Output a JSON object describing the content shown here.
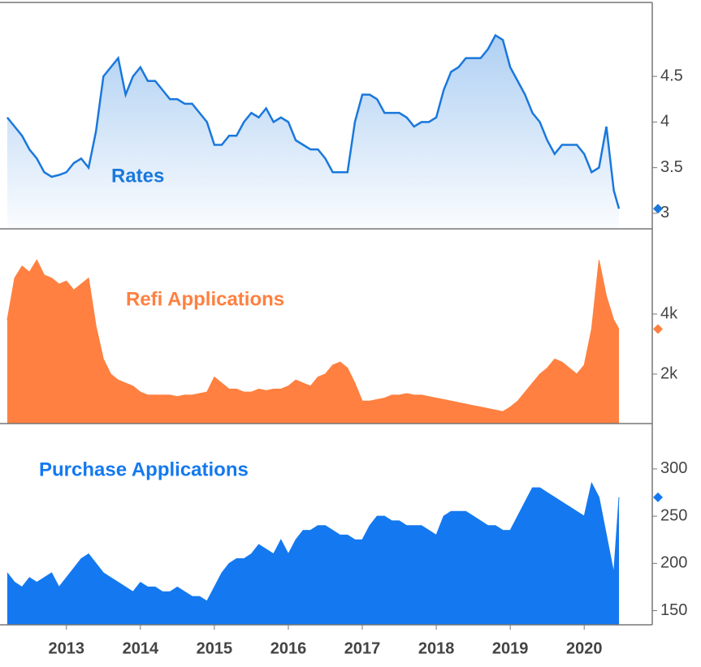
{
  "chart_data": [
    {
      "type": "line",
      "title": "Rates",
      "color": "#1a78dc",
      "fill": "#1a78dc",
      "xlim": [
        2012.19,
        2020.92
      ],
      "ylim": [
        2.83,
        5.31
      ],
      "yticks": [
        3,
        3.5,
        4,
        4.5
      ],
      "x": [
        2012.2,
        2012.3,
        2012.4,
        2012.5,
        2012.6,
        2012.7,
        2012.8,
        2012.9,
        2013.0,
        2013.1,
        2013.2,
        2013.3,
        2013.4,
        2013.5,
        2013.6,
        2013.7,
        2013.8,
        2013.9,
        2014.0,
        2014.1,
        2014.2,
        2014.3,
        2014.4,
        2014.5,
        2014.6,
        2014.7,
        2014.8,
        2014.9,
        2015.0,
        2015.1,
        2015.2,
        2015.3,
        2015.4,
        2015.5,
        2015.6,
        2015.7,
        2015.8,
        2015.9,
        2016.0,
        2016.1,
        2016.2,
        2016.3,
        2016.4,
        2016.5,
        2016.6,
        2016.7,
        2016.8,
        2016.9,
        2017.0,
        2017.1,
        2017.2,
        2017.3,
        2017.4,
        2017.5,
        2017.6,
        2017.7,
        2017.8,
        2017.9,
        2018.0,
        2018.1,
        2018.2,
        2018.3,
        2018.4,
        2018.5,
        2018.6,
        2018.7,
        2018.8,
        2018.9,
        2019.0,
        2019.1,
        2019.2,
        2019.3,
        2019.4,
        2019.5,
        2019.6,
        2019.7,
        2019.8,
        2019.9,
        2020.0,
        2020.1,
        2020.2,
        2020.3,
        2020.4,
        2020.47
      ],
      "values": [
        4.05,
        3.95,
        3.85,
        3.7,
        3.6,
        3.45,
        3.4,
        3.42,
        3.45,
        3.55,
        3.6,
        3.5,
        3.9,
        4.5,
        4.6,
        4.7,
        4.3,
        4.5,
        4.6,
        4.45,
        4.45,
        4.35,
        4.25,
        4.25,
        4.2,
        4.2,
        4.1,
        4.0,
        3.75,
        3.75,
        3.85,
        3.85,
        4.0,
        4.1,
        4.05,
        4.15,
        4.0,
        4.05,
        4.0,
        3.8,
        3.75,
        3.7,
        3.7,
        3.6,
        3.45,
        3.45,
        3.45,
        4.0,
        4.3,
        4.3,
        4.25,
        4.1,
        4.1,
        4.1,
        4.05,
        3.95,
        4.0,
        4.0,
        4.05,
        4.35,
        4.55,
        4.6,
        4.7,
        4.7,
        4.7,
        4.8,
        4.95,
        4.9,
        4.6,
        4.45,
        4.3,
        4.1,
        4.0,
        3.8,
        3.65,
        3.75,
        3.75,
        3.75,
        3.65,
        3.45,
        3.5,
        3.95,
        3.25,
        3.05
      ]
    },
    {
      "type": "area",
      "title": "Refi Applications",
      "color": "#ff8040",
      "xlim": [
        2012.19,
        2020.92
      ],
      "ylim": [
        350,
        6840
      ],
      "yticks": [
        {
          "value": 2000,
          "label": "2k"
        },
        {
          "value": 4000,
          "label": "4k"
        }
      ],
      "x": [
        2012.2,
        2012.3,
        2012.4,
        2012.5,
        2012.6,
        2012.7,
        2012.8,
        2012.9,
        2013.0,
        2013.1,
        2013.2,
        2013.3,
        2013.4,
        2013.5,
        2013.6,
        2013.7,
        2013.8,
        2013.9,
        2014.0,
        2014.1,
        2014.2,
        2014.3,
        2014.4,
        2014.5,
        2014.6,
        2014.7,
        2014.8,
        2014.9,
        2015.0,
        2015.1,
        2015.2,
        2015.3,
        2015.4,
        2015.5,
        2015.6,
        2015.7,
        2015.8,
        2015.9,
        2016.0,
        2016.1,
        2016.2,
        2016.3,
        2016.4,
        2016.5,
        2016.6,
        2016.7,
        2016.8,
        2016.9,
        2017.0,
        2017.1,
        2017.2,
        2017.3,
        2017.4,
        2017.5,
        2017.6,
        2017.7,
        2017.8,
        2017.9,
        2018.0,
        2018.1,
        2018.2,
        2018.3,
        2018.4,
        2018.5,
        2018.6,
        2018.7,
        2018.8,
        2018.9,
        2019.0,
        2019.1,
        2019.2,
        2019.3,
        2019.4,
        2019.5,
        2019.6,
        2019.7,
        2019.8,
        2019.9,
        2020.0,
        2020.1,
        2020.2,
        2020.3,
        2020.4,
        2020.47
      ],
      "values": [
        3800,
        5200,
        5600,
        5400,
        5800,
        5300,
        5200,
        5000,
        5100,
        4800,
        5000,
        5200,
        3600,
        2500,
        2000,
        1800,
        1700,
        1600,
        1400,
        1300,
        1300,
        1300,
        1300,
        1250,
        1300,
        1300,
        1350,
        1400,
        1900,
        1700,
        1500,
        1500,
        1400,
        1400,
        1500,
        1450,
        1500,
        1500,
        1600,
        1800,
        1700,
        1600,
        1900,
        2000,
        2300,
        2400,
        2200,
        1700,
        1100,
        1100,
        1150,
        1200,
        1300,
        1300,
        1350,
        1300,
        1300,
        1250,
        1200,
        1150,
        1100,
        1050,
        1000,
        950,
        900,
        850,
        800,
        750,
        900,
        1100,
        1400,
        1700,
        2000,
        2200,
        2500,
        2400,
        2200,
        2000,
        2300,
        3500,
        5800,
        4600,
        3800,
        3500
      ]
    },
    {
      "type": "area",
      "title": "Purchase Applications",
      "color": "#1479f0",
      "xlim": [
        2012.19,
        2020.92
      ],
      "ylim": [
        135,
        348
      ],
      "yticks": [
        150,
        200,
        250,
        300
      ],
      "xticks": [
        2013,
        2014,
        2015,
        2016,
        2017,
        2018,
        2019,
        2020
      ],
      "x": [
        2012.2,
        2012.3,
        2012.4,
        2012.5,
        2012.6,
        2012.7,
        2012.8,
        2012.9,
        2013.0,
        2013.1,
        2013.2,
        2013.3,
        2013.4,
        2013.5,
        2013.6,
        2013.7,
        2013.8,
        2013.9,
        2014.0,
        2014.1,
        2014.2,
        2014.3,
        2014.4,
        2014.5,
        2014.6,
        2014.7,
        2014.8,
        2014.9,
        2015.0,
        2015.1,
        2015.2,
        2015.3,
        2015.4,
        2015.5,
        2015.6,
        2015.7,
        2015.8,
        2015.9,
        2016.0,
        2016.1,
        2016.2,
        2016.3,
        2016.4,
        2016.5,
        2016.6,
        2016.7,
        2016.8,
        2016.9,
        2017.0,
        2017.1,
        2017.2,
        2017.3,
        2017.4,
        2017.5,
        2017.6,
        2017.7,
        2017.8,
        2017.9,
        2018.0,
        2018.1,
        2018.2,
        2018.3,
        2018.4,
        2018.5,
        2018.6,
        2018.7,
        2018.8,
        2018.9,
        2019.0,
        2019.1,
        2019.2,
        2019.3,
        2019.4,
        2019.5,
        2019.6,
        2019.7,
        2019.8,
        2019.9,
        2020.0,
        2020.1,
        2020.2,
        2020.3,
        2020.4,
        2020.47
      ],
      "values": [
        190,
        180,
        175,
        185,
        180,
        185,
        190,
        175,
        185,
        195,
        205,
        210,
        200,
        190,
        185,
        180,
        175,
        170,
        180,
        175,
        175,
        170,
        170,
        175,
        170,
        165,
        165,
        160,
        175,
        190,
        200,
        205,
        205,
        210,
        220,
        215,
        210,
        225,
        210,
        225,
        235,
        235,
        240,
        240,
        235,
        230,
        230,
        225,
        225,
        240,
        250,
        250,
        245,
        245,
        240,
        240,
        240,
        235,
        230,
        250,
        255,
        255,
        255,
        250,
        245,
        240,
        240,
        235,
        235,
        250,
        265,
        280,
        280,
        275,
        270,
        265,
        260,
        255,
        250,
        285,
        270,
        230,
        190,
        270
      ]
    }
  ]
}
